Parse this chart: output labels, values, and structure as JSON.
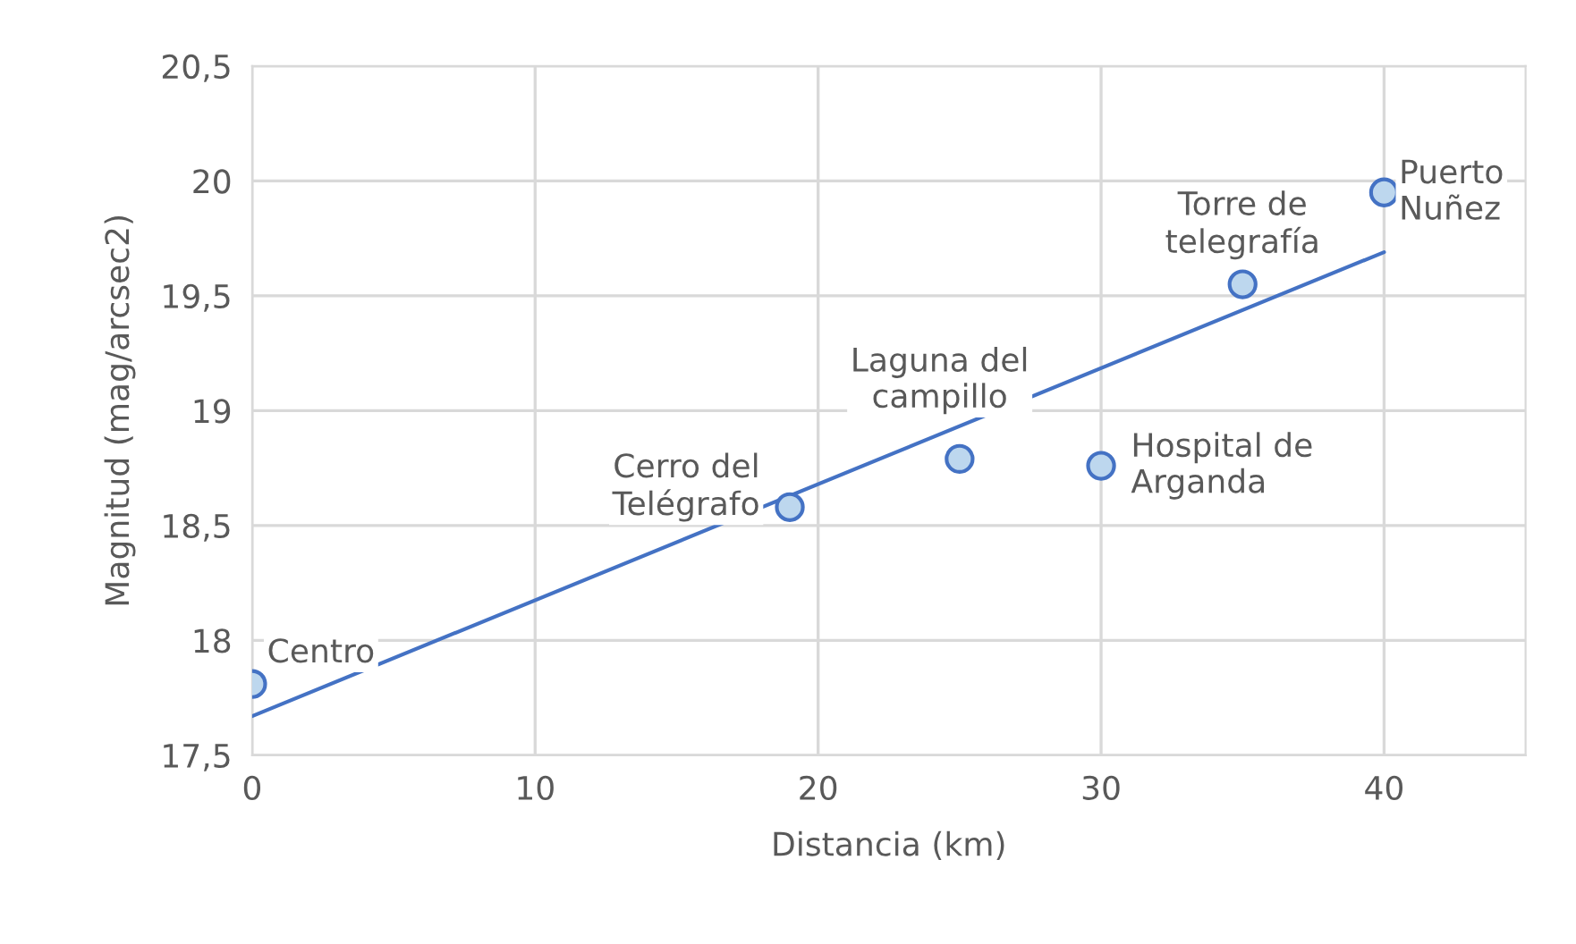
{
  "chart_data": {
    "type": "scatter",
    "xlabel": "Distancia (km)",
    "ylabel": "Magnitud (mag/arcsec2)",
    "series": [
      {
        "marker": "circle",
        "color": "#bdd7ee",
        "x": [
          0,
          19,
          25,
          30,
          35,
          40
        ],
        "values": [
          17.81,
          18.58,
          18.79,
          18.76,
          19.55,
          19.95
        ]
      },
      {
        "type": "line",
        "marker": "none",
        "color": "#4472c4",
        "x": [
          0,
          40
        ],
        "values": [
          17.67,
          19.69
        ]
      }
    ],
    "annotations": [
      {
        "text": "Centro",
        "x": 0,
        "y": 17.81
      },
      {
        "text": "Cerro del\nTelégrafo",
        "x": 19,
        "y": 18.58
      },
      {
        "text": "Laguna del\ncampillo",
        "x": 25,
        "y": 18.79
      },
      {
        "text": "Hospital de\nArganda",
        "x": 30,
        "y": 18.76
      },
      {
        "text": "Torre de\ntelegrafía",
        "x": 35,
        "y": 19.55
      },
      {
        "text": "Puerto\nNuñez",
        "x": 40,
        "y": 19.95
      }
    ],
    "xlim": [
      0,
      45
    ],
    "xticks": [
      0,
      10,
      20,
      30,
      40
    ],
    "ylim": [
      17.5,
      20.5
    ],
    "yticks": [
      {
        "value": 17.5,
        "label": "17,5"
      },
      18,
      {
        "value": 18.5,
        "label": "18,5"
      },
      19,
      {
        "value": 19.5,
        "label": "19,5"
      },
      20,
      {
        "value": 20.5,
        "label": "20,5"
      }
    ],
    "grid": true,
    "line_style": "solid"
  }
}
